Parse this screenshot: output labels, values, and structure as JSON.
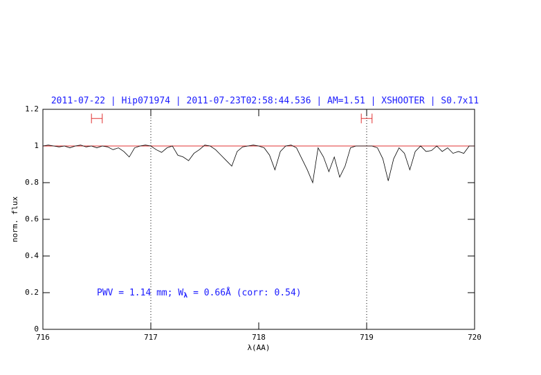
{
  "chart_data": {
    "type": "line",
    "title": "2011-07-22 | Hip071974 | 2011-07-23T02:58:44.536 | AM=1.51 | XSHOOTER | S0.7x11",
    "xlabel": "λ(AA)",
    "ylabel": "norm. flux",
    "annotation": {
      "text": "PWV = 1.14 mm; W",
      "subscript": "λ",
      "rest": " = 0.66Å  (corr: 0.54)",
      "x": 716.5,
      "y": 0.2
    },
    "xlim": [
      716,
      720
    ],
    "ylim": [
      0,
      1.2
    ],
    "xticks": [
      716,
      717,
      718,
      719,
      720
    ],
    "yticks": [
      0,
      0.2,
      0.4,
      0.6,
      0.8,
      1,
      1.2
    ],
    "reference_line": {
      "y": 1,
      "color": "#e03030"
    },
    "vlines": [
      717,
      719
    ],
    "ranges": [
      {
        "x": [
          716.45,
          716.55
        ],
        "y": 1.15,
        "color": "#e03030"
      },
      {
        "x": [
          718.95,
          719.05
        ],
        "y": 1.15,
        "color": "#e03030"
      }
    ],
    "x": [
      716,
      716.05,
      716.1,
      716.15,
      716.2,
      716.25,
      716.3,
      716.35,
      716.4,
      716.45,
      716.5,
      716.55,
      716.6,
      716.65,
      716.7,
      716.75,
      716.8,
      716.85,
      716.9,
      716.95,
      717,
      717.05,
      717.1,
      717.15,
      717.2,
      717.25,
      717.3,
      717.35,
      717.4,
      717.45,
      717.5,
      717.55,
      717.6,
      717.65,
      717.7,
      717.75,
      717.8,
      717.85,
      717.9,
      717.95,
      718,
      718.05,
      718.1,
      718.15,
      718.2,
      718.25,
      718.3,
      718.35,
      718.4,
      718.45,
      718.5,
      718.55,
      718.6,
      718.65,
      718.7,
      718.75,
      718.8,
      718.85,
      718.9,
      718.95,
      719,
      719.05,
      719.1,
      719.15,
      719.2,
      719.25,
      719.3,
      719.35,
      719.4,
      719.45,
      719.5,
      719.55,
      719.6,
      719.65,
      719.7,
      719.75,
      719.8,
      719.85,
      719.9,
      719.95,
      720
    ],
    "series": [
      {
        "color": "#000000",
        "values": [
          1.0,
          1.005,
          1.0,
          0.995,
          1.0,
          0.99,
          1.0,
          1.005,
          0.995,
          1.0,
          0.99,
          1.0,
          0.995,
          0.98,
          0.99,
          0.97,
          0.94,
          0.99,
          1.0,
          1.005,
          1.0,
          0.98,
          0.965,
          0.99,
          1.0,
          0.95,
          0.94,
          0.92,
          0.96,
          0.98,
          1.005,
          1.0,
          0.98,
          0.95,
          0.92,
          0.89,
          0.97,
          0.995,
          1.0,
          1.005,
          1.0,
          0.99,
          0.95,
          0.87,
          0.97,
          1.0,
          1.005,
          0.99,
          0.93,
          0.87,
          0.8,
          0.99,
          0.94,
          0.86,
          0.94,
          0.83,
          0.89,
          0.99,
          1.0,
          1.0,
          1.0,
          1.0,
          0.99,
          0.93,
          0.81,
          0.93,
          0.99,
          0.96,
          0.87,
          0.97,
          1.0,
          0.97,
          0.975,
          1.0,
          0.97,
          0.99,
          0.96,
          0.97,
          0.96,
          1.0,
          1.0
        ]
      }
    ]
  }
}
